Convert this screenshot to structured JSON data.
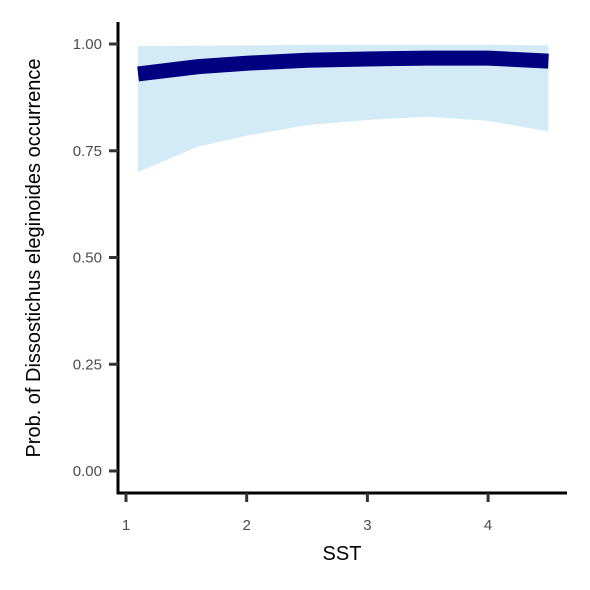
{
  "chart_data": {
    "type": "line",
    "title": "",
    "xlabel": "SST",
    "ylabel": "Prob. of  Dissostichus eleginoides  occurrence",
    "xlim": [
      0.9,
      4.65
    ],
    "ylim": [
      -0.05,
      1.05
    ],
    "x_ticks": [
      1,
      2,
      3,
      4
    ],
    "x_tick_labels": [
      "1",
      "2",
      "3",
      "4"
    ],
    "y_ticks": [
      0,
      0.25,
      0.5,
      0.75,
      1
    ],
    "y_tick_labels": [
      "0.00",
      "0.25",
      "0.50",
      "0.75",
      "1.00"
    ],
    "grid": false,
    "legend": "none",
    "colors": {
      "line": "#000080",
      "ribbon": "#d2ebf7",
      "axis": "#000000"
    },
    "series": [
      {
        "x": [
          1.1,
          1.6,
          2.0,
          2.5,
          3.0,
          3.5,
          4.0,
          4.5
        ],
        "y": [
          0.93,
          0.947,
          0.955,
          0.962,
          0.965,
          0.967,
          0.967,
          0.96
        ],
        "lower": [
          0.7,
          0.76,
          0.785,
          0.81,
          0.822,
          0.83,
          0.82,
          0.795
        ],
        "upper": [
          0.995,
          0.996,
          0.997,
          0.998,
          0.998,
          0.998,
          0.998,
          0.997
        ]
      }
    ]
  }
}
